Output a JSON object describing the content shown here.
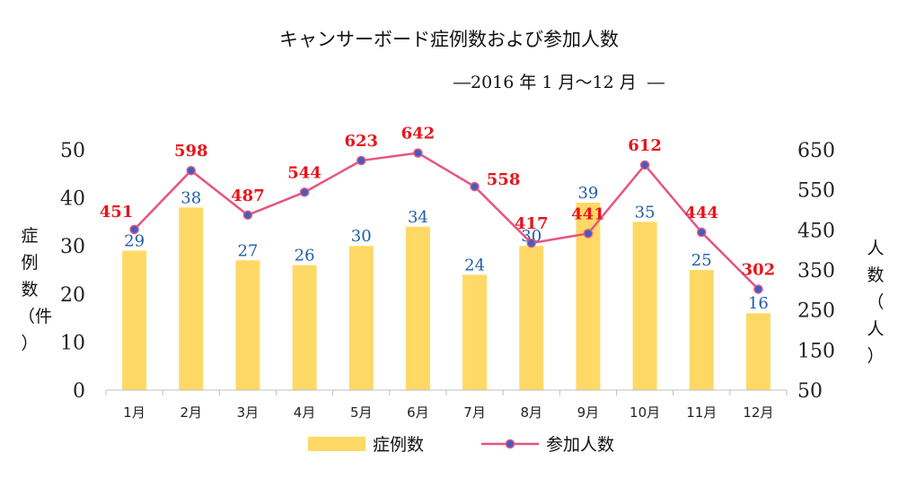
{
  "title": "キャンサーボード症例数および参加人数",
  "subtitle": "―2016 年 1 月～12 月  ―",
  "y_left_label": [
    "症",
    "例",
    "数",
    "（件",
    "）"
  ],
  "y_right_label": [
    "人",
    "数",
    "（",
    "人",
    "）"
  ],
  "colors": {
    "bar": "#FFD966",
    "line": "#E75480",
    "marker_fill": "#3C5FBF",
    "bar_label": "#1F5FA8",
    "line_label": "#E8141B"
  },
  "chart_data": {
    "type": "bar",
    "categories": [
      "1月",
      "2月",
      "3月",
      "4月",
      "5月",
      "6月",
      "7月",
      "8月",
      "9月",
      "10月",
      "11月",
      "12月"
    ],
    "series": [
      {
        "name": "症例数",
        "type": "bar",
        "axis": "left",
        "values": [
          29,
          38,
          27,
          26,
          30,
          34,
          24,
          30,
          39,
          35,
          25,
          16
        ]
      },
      {
        "name": "参加人数",
        "type": "line",
        "axis": "right",
        "values": [
          451,
          598,
          487,
          544,
          623,
          642,
          558,
          417,
          441,
          612,
          444,
          302
        ]
      }
    ],
    "y_left": {
      "min": 0,
      "max": 50,
      "ticks": [
        0,
        10,
        20,
        30,
        40,
        50
      ]
    },
    "y_right": {
      "min": 50,
      "max": 650,
      "ticks": [
        50,
        150,
        250,
        350,
        450,
        550,
        650
      ]
    },
    "grid": false,
    "legend": "bottom"
  }
}
